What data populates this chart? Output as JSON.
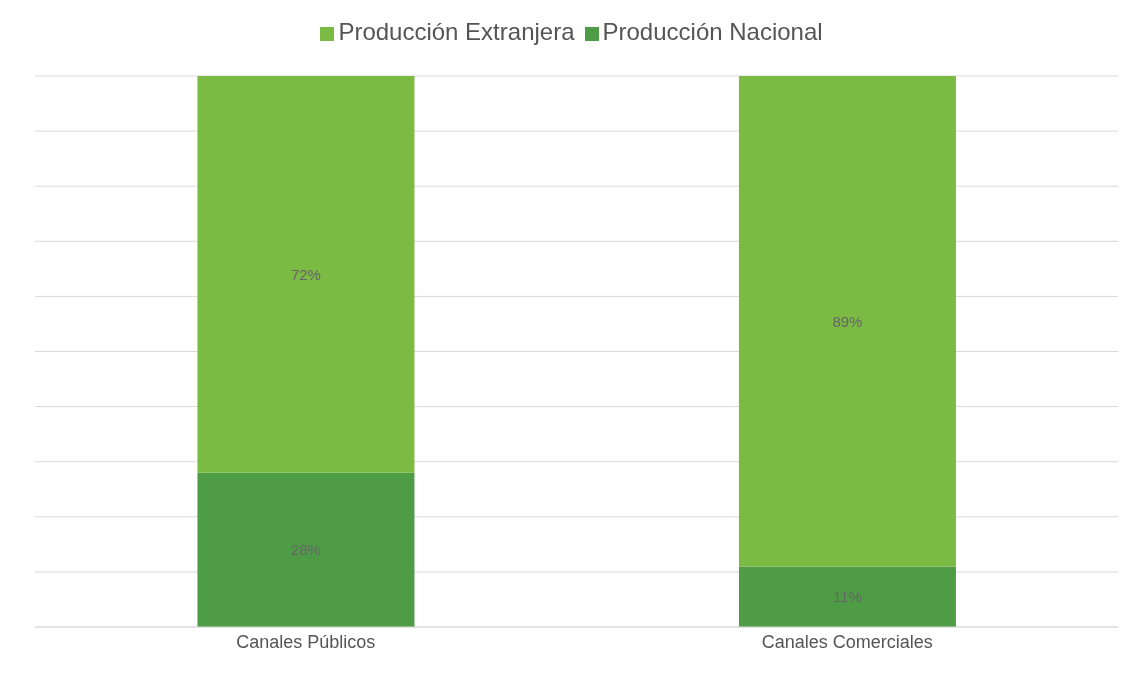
{
  "chart_data": {
    "type": "bar",
    "stacked": true,
    "categories": [
      "Canales Públicos",
      "Canales Comerciales"
    ],
    "series": [
      {
        "name": "Producción Nacional",
        "color": "#4e9c45",
        "values": [
          28,
          11
        ],
        "value_labels": [
          "28%",
          "11%"
        ]
      },
      {
        "name": "Producción Extranjera",
        "color": "#7bbb43",
        "values": [
          72,
          89
        ],
        "value_labels": [
          "72%",
          "89%"
        ]
      }
    ],
    "ylim": [
      0,
      100
    ],
    "yticks": [
      {
        "value": 0,
        "label": null
      },
      {
        "value": 10,
        "label": null
      },
      {
        "value": 20,
        "label": null
      },
      {
        "value": 30,
        "label": null
      },
      {
        "value": 40,
        "label": null
      },
      {
        "value": 50,
        "label": null
      },
      {
        "value": 60,
        "label": null
      },
      {
        "value": 70,
        "label": null
      },
      {
        "value": 80,
        "label": null
      },
      {
        "value": 90,
        "label": null
      },
      {
        "value": 100,
        "label": null
      }
    ],
    "tick_labels": "x",
    "grid": "y",
    "legend": "top"
  }
}
